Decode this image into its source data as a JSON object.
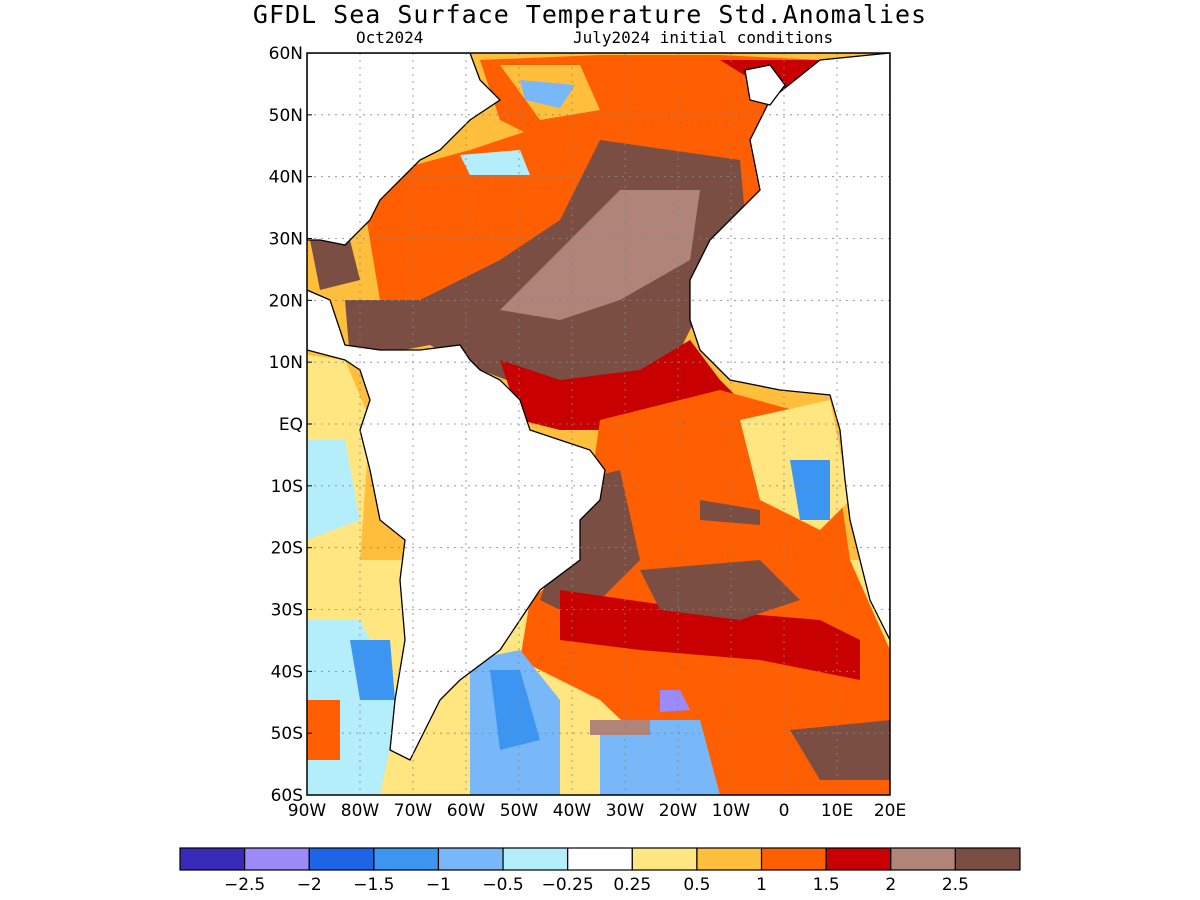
{
  "title": "GFDL Sea Surface Temperature Std.Anomalies",
  "subtitle_left": "Oct2024",
  "subtitle_right": "July2024 initial conditions",
  "map": {
    "lon_range": [
      -90,
      20
    ],
    "lat_range": [
      -60,
      60
    ],
    "lat_ticks": [
      "60N",
      "50N",
      "40N",
      "30N",
      "20N",
      "10N",
      "EQ",
      "10S",
      "20S",
      "30S",
      "40S",
      "50S",
      "60S"
    ],
    "lon_ticks": [
      "90W",
      "80W",
      "70W",
      "60W",
      "50W",
      "40W",
      "30W",
      "20W",
      "10W",
      "0",
      "10E",
      "20E"
    ],
    "grid": true
  },
  "colorbar": {
    "colors": [
      "#3a2aba",
      "#9c8af8",
      "#1e64e6",
      "#3c95f0",
      "#78b8f8",
      "#b4eefa",
      "#ffffff",
      "#ffe680",
      "#ffbe3c",
      "#ff5f00",
      "#c80000",
      "#b08478",
      "#7a4e42"
    ],
    "labels": [
      "−2.5",
      "−2",
      "−1.5",
      "−1",
      "−0.5",
      "−0.25",
      "0.25",
      "0.5",
      "1",
      "1.5",
      "2",
      "2.5"
    ]
  }
}
